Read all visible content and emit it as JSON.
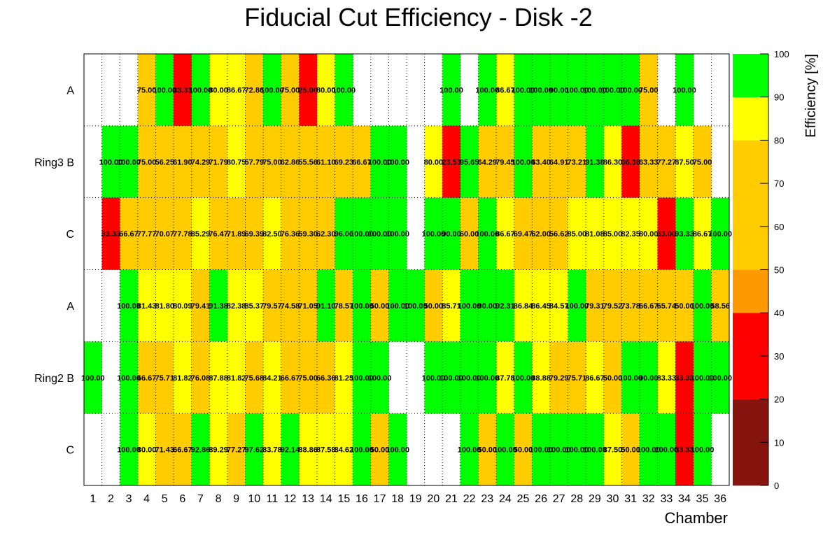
{
  "chart_data": {
    "type": "heatmap",
    "title": "Fiducial Cut Efficiency - Disk -2",
    "xlabel": "Chamber",
    "colorbar_label": "Efficiency [%]",
    "x_categories": [
      "1",
      "2",
      "3",
      "4",
      "5",
      "6",
      "7",
      "8",
      "9",
      "10",
      "11",
      "12",
      "13",
      "14",
      "15",
      "16",
      "17",
      "18",
      "19",
      "20",
      "21",
      "22",
      "23",
      "24",
      "25",
      "26",
      "27",
      "28",
      "29",
      "30",
      "31",
      "32",
      "33",
      "34",
      "35",
      "36"
    ],
    "y_labels": [
      "A",
      "Ring3 B",
      "C",
      "A",
      "Ring2 B",
      "C"
    ],
    "colorbar_ticks": [
      "0",
      "10",
      "20",
      "30",
      "40",
      "50",
      "60",
      "70",
      "80",
      "90",
      "100"
    ],
    "color_scale": [
      {
        "min": 0,
        "max": 20,
        "color": "#861510"
      },
      {
        "min": 20,
        "max": 40,
        "color": "#ff0000"
      },
      {
        "min": 40,
        "max": 50,
        "color": "#ff9900"
      },
      {
        "min": 50,
        "max": 80,
        "color": "#ffcc00"
      },
      {
        "min": 80,
        "max": 90,
        "color": "#ffff00"
      },
      {
        "min": 90,
        "max": 100,
        "color": "#00ff00"
      }
    ],
    "rows": [
      [
        null,
        null,
        null,
        75.0,
        100.0,
        33.33,
        100.0,
        80.0,
        86.67,
        72.86,
        100.0,
        75.0,
        25.0,
        80.0,
        100.0,
        null,
        null,
        null,
        null,
        null,
        100.0,
        null,
        100.0,
        86.67,
        100.0,
        100.0,
        90.0,
        100.0,
        100.0,
        100.0,
        100.0,
        75.0,
        null,
        100.0,
        null,
        null
      ],
      [
        null,
        100.0,
        100.0,
        75.0,
        56.25,
        61.9,
        74.29,
        71.79,
        80.75,
        57.79,
        75.0,
        62.86,
        55.56,
        61.1,
        69.23,
        66.67,
        100.0,
        100.0,
        null,
        80.0,
        23.53,
        95.65,
        64.29,
        79.45,
        100.0,
        63.4,
        64.91,
        73.21,
        91.38,
        86.3,
        36.36,
        63.33,
        77.27,
        87.5,
        75.0,
        null
      ],
      [
        null,
        33.33,
        66.67,
        77.77,
        70.07,
        77.78,
        85.29,
        76.47,
        71.89,
        69.39,
        82.5,
        76.36,
        59.3,
        62.3,
        96.0,
        100.0,
        100.0,
        100.0,
        null,
        100.0,
        90.0,
        60.0,
        100.0,
        86.67,
        69.47,
        62.0,
        56.62,
        85.0,
        81.08,
        85.0,
        82.35,
        80.0,
        33.0,
        93.33,
        86.67,
        100.0
      ],
      [
        null,
        null,
        100.0,
        81.43,
        81.8,
        80.09,
        79.41,
        91.38,
        82.38,
        85.37,
        79.57,
        74.58,
        71.05,
        91.1,
        78.57,
        100.0,
        50.0,
        100.0,
        100.0,
        50.0,
        85.71,
        100.0,
        90.0,
        92.31,
        86.84,
        86.45,
        84.57,
        100.0,
        79.31,
        79.52,
        73.78,
        66.67,
        65.74,
        50.0,
        100.0,
        58.56
      ],
      [
        100.0,
        null,
        100.0,
        66.67,
        75.71,
        81.82,
        76.08,
        87.88,
        81.82,
        75.68,
        84.21,
        66.67,
        75.0,
        66.36,
        81.25,
        100.0,
        100.0,
        null,
        null,
        100.0,
        100.0,
        100.0,
        100.0,
        87.78,
        100.0,
        88.88,
        79.29,
        75.71,
        86.67,
        50.0,
        100.0,
        90.0,
        83.33,
        33.33,
        100.0,
        100.0
      ],
      [
        null,
        null,
        100.0,
        80.0,
        71.43,
        66.67,
        92.86,
        89.29,
        77.27,
        97.62,
        83.78,
        92.14,
        88.86,
        87.58,
        84.62,
        100.0,
        50.0,
        100.0,
        null,
        null,
        null,
        100.0,
        50.0,
        100.0,
        50.0,
        100.0,
        100.0,
        100.0,
        100.0,
        87.5,
        50.0,
        100.0,
        100.0,
        33.33,
        100.0,
        null
      ]
    ]
  }
}
